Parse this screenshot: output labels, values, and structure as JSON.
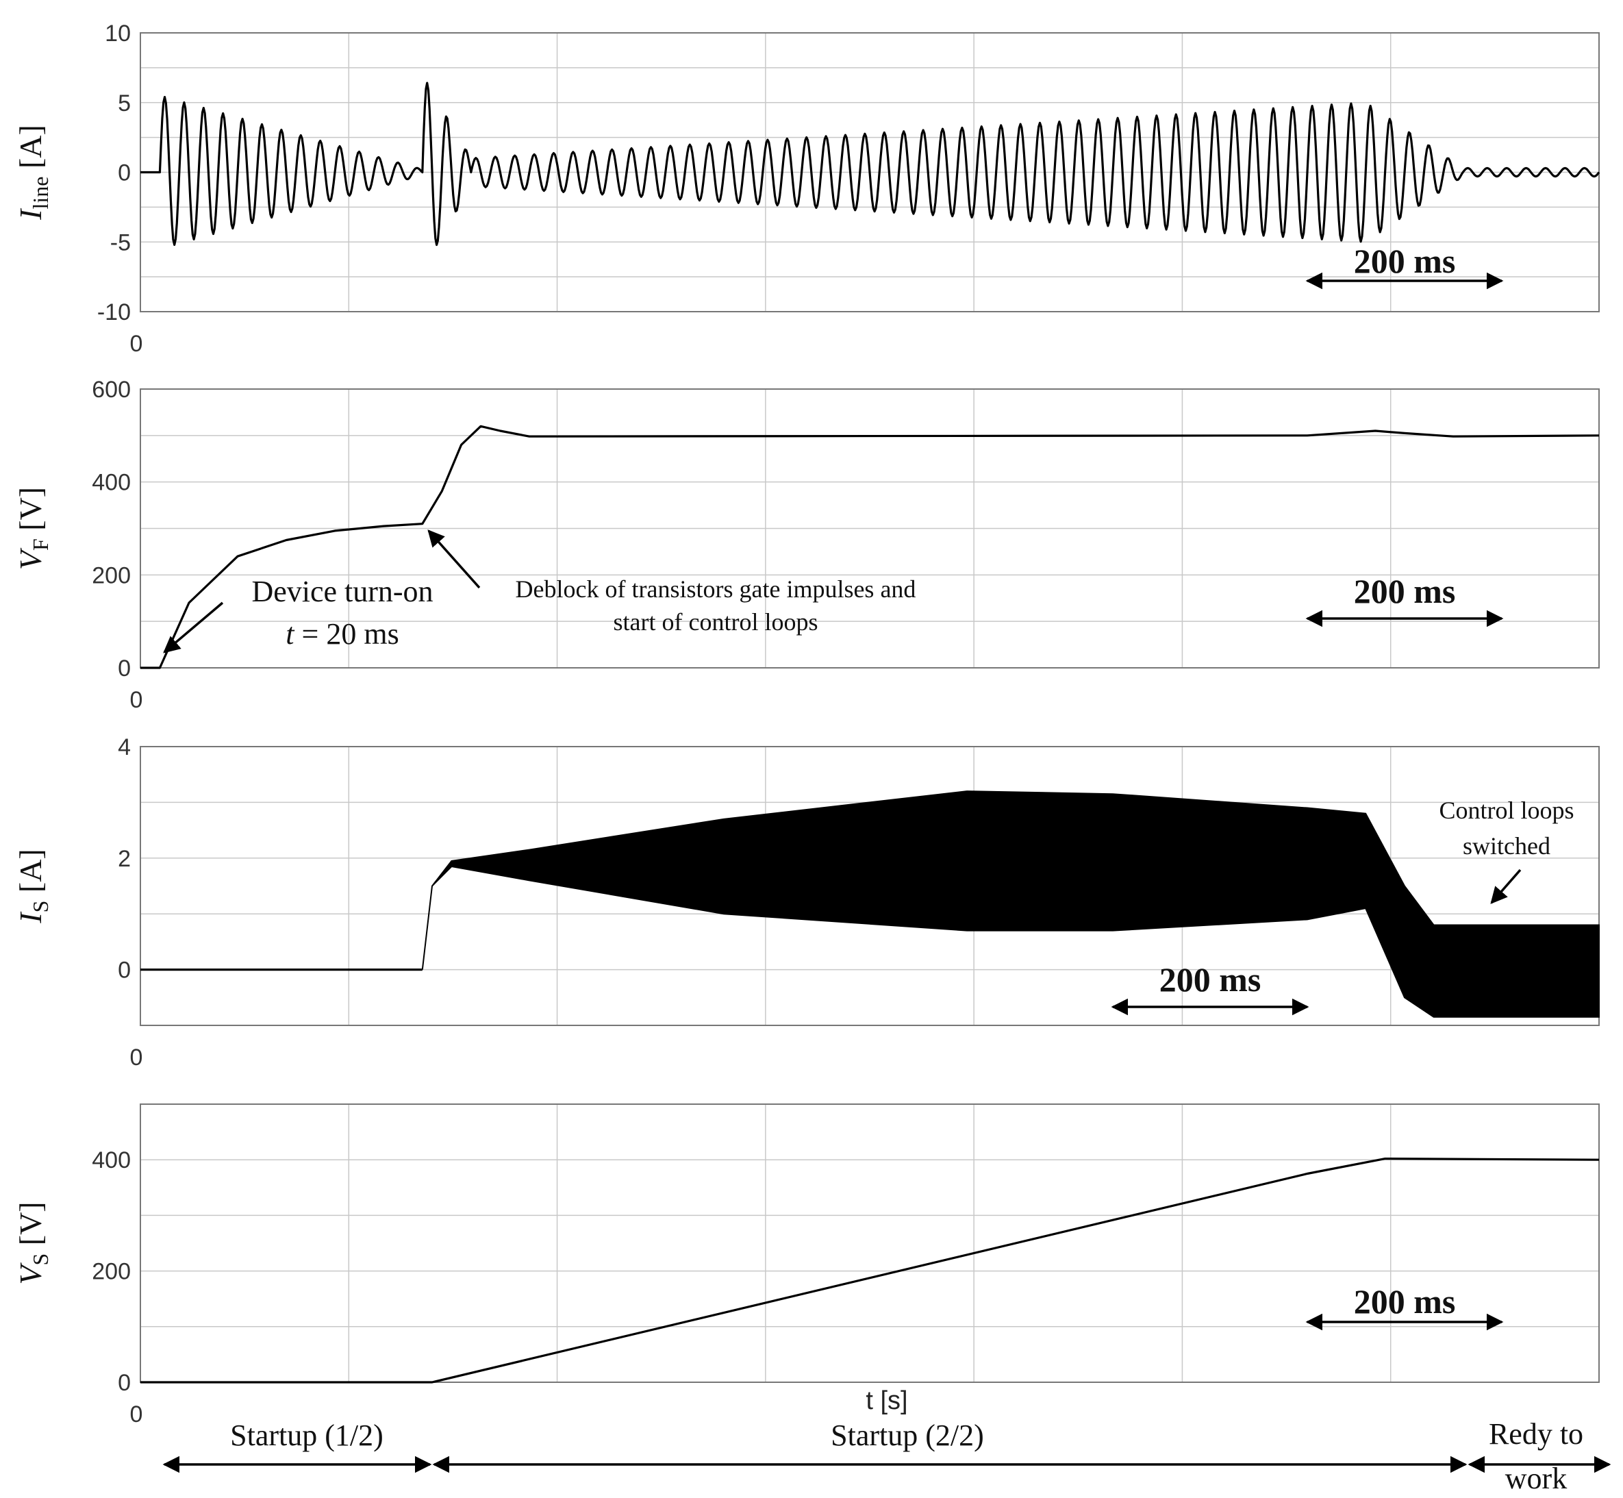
{
  "chart_data": [
    {
      "type": "line",
      "ylabel_symbol": "I",
      "ylabel_subscript": "line",
      "ylabel_unit": "[A]",
      "ylim": [
        -10,
        10
      ],
      "yticks": [
        "10",
        "5",
        "0",
        "-5",
        "-10"
      ],
      "x_origin_label": "0",
      "xlim": [
        0,
        1.5
      ],
      "grid": true,
      "description_of_series": "Line current: damped 50 Hz transient at device turn-on (t = 0.02 s, peak ~5.5 A), larger transient at deblock (t = 0.29 s, peaks ~+7/-6.5 A), then oscillation growing from ~1 A to ~5 A amplitude until t = 1.26 s, decaying to ~0 after t = 1.36 s",
      "series": [
        {
          "segments": [
            {
              "t_start": 0.02,
              "t_end": 0.29,
              "amplitude_start": 5.5,
              "amplitude_end": 0.2
            },
            {
              "t_start": 0.29,
              "t_end": 0.34,
              "amplitude_start": 7.0,
              "amplitude_end": 1.0
            },
            {
              "t_start": 0.34,
              "t_end": 1.26,
              "amplitude_start": 1.0,
              "amplitude_end": 5.0
            },
            {
              "t_start": 1.26,
              "t_end": 1.36,
              "amplitude_start": 5.0,
              "amplitude_end": 0.3
            },
            {
              "t_start": 1.36,
              "t_end": 1.5,
              "amplitude_start": 0.3,
              "amplitude_end": 0.3
            }
          ],
          "frequency_hz": 50
        }
      ],
      "annotation_200ms": {
        "label": "200 ms",
        "t_from": 1.2,
        "t_to": 1.4
      }
    },
    {
      "type": "line",
      "ylabel_symbol": "V",
      "ylabel_subscript": "F",
      "ylabel_unit": "[V]",
      "ylim": [
        0,
        600
      ],
      "yticks": [
        "600",
        "400",
        "200",
        "0"
      ],
      "x_origin_label": "0",
      "xlim": [
        0,
        1.5
      ],
      "grid": true,
      "series": [
        {
          "points": [
            [
              0,
              0
            ],
            [
              0.02,
              0
            ],
            [
              0.05,
              140
            ],
            [
              0.1,
              240
            ],
            [
              0.15,
              275
            ],
            [
              0.2,
              295
            ],
            [
              0.25,
              305
            ],
            [
              0.29,
              310
            ],
            [
              0.31,
              380
            ],
            [
              0.33,
              480
            ],
            [
              0.35,
              520
            ],
            [
              0.37,
              510
            ],
            [
              0.4,
              498
            ],
            [
              1.2,
              500
            ],
            [
              1.27,
              510
            ],
            [
              1.3,
              505
            ],
            [
              1.35,
              498
            ],
            [
              1.5,
              500
            ]
          ]
        }
      ],
      "annotations": [
        {
          "text_line1": "Device turn-on",
          "text_line2_var": "t",
          "text_line2_rest": " = 20 ms",
          "t": 0.02,
          "value": 0
        },
        {
          "text_line1": "Deblock of transistors gate impulses and",
          "text_line2": "start of control loops",
          "t": 0.29,
          "value": 310
        }
      ],
      "annotation_200ms": {
        "label": "200 ms",
        "t_from": 1.2,
        "t_to": 1.4
      }
    },
    {
      "type": "area",
      "ylabel_symbol": "I",
      "ylabel_subscript": "S",
      "ylabel_unit": "[A]",
      "ylim": [
        -1,
        4
      ],
      "yticks": [
        "4",
        "2",
        "0"
      ],
      "x_origin_label": "0",
      "xlim": [
        0,
        1.5
      ],
      "grid": true,
      "description_of_series": "Storage current envelope (high-frequency ripple shown as filled band)",
      "envelope_upper": [
        [
          0.29,
          0
        ],
        [
          0.3,
          1.5
        ],
        [
          0.32,
          1.95
        ],
        [
          0.4,
          2.15
        ],
        [
          0.6,
          2.7
        ],
        [
          0.85,
          3.2
        ],
        [
          1.0,
          3.15
        ],
        [
          1.2,
          2.9
        ],
        [
          1.26,
          2.8
        ],
        [
          1.3,
          1.5
        ],
        [
          1.33,
          0.8
        ],
        [
          1.5,
          0.8
        ]
      ],
      "envelope_lower": [
        [
          0.29,
          0
        ],
        [
          0.3,
          1.5
        ],
        [
          0.32,
          1.85
        ],
        [
          0.4,
          1.6
        ],
        [
          0.6,
          1.0
        ],
        [
          0.85,
          0.7
        ],
        [
          1.0,
          0.7
        ],
        [
          1.2,
          0.9
        ],
        [
          1.26,
          1.1
        ],
        [
          1.3,
          -0.5
        ],
        [
          1.33,
          -0.85
        ],
        [
          1.5,
          -0.85
        ]
      ],
      "baseline": [
        [
          0,
          0
        ],
        [
          0.29,
          0
        ]
      ],
      "annotations": [
        {
          "text_line1": "Control loops",
          "text_line2": "switched",
          "t": 1.38,
          "value": 1.0
        }
      ],
      "annotation_200ms": {
        "label": "200 ms",
        "t_from": 1.0,
        "t_to": 1.2
      }
    },
    {
      "type": "line",
      "ylabel_symbol": "V",
      "ylabel_subscript": "S",
      "ylabel_unit": "[V]",
      "ylim": [
        0,
        500
      ],
      "yticks": [
        "400",
        "200",
        "0"
      ],
      "x_origin_label": "0",
      "xlim": [
        0,
        1.5
      ],
      "grid": true,
      "series": [
        {
          "points": [
            [
              0,
              0
            ],
            [
              0.3,
              0
            ],
            [
              1.2,
              375
            ],
            [
              1.28,
              402
            ],
            [
              1.5,
              400
            ]
          ]
        }
      ],
      "annotation_200ms": {
        "label": "200 ms",
        "t_from": 1.2,
        "t_to": 1.4
      }
    }
  ],
  "xlabel": "t [s]",
  "phases": [
    {
      "label": "Startup (1/2)"
    },
    {
      "label": "Startup (2/2)"
    },
    {
      "label_line1": "Redy to",
      "label_line2": "work"
    }
  ]
}
